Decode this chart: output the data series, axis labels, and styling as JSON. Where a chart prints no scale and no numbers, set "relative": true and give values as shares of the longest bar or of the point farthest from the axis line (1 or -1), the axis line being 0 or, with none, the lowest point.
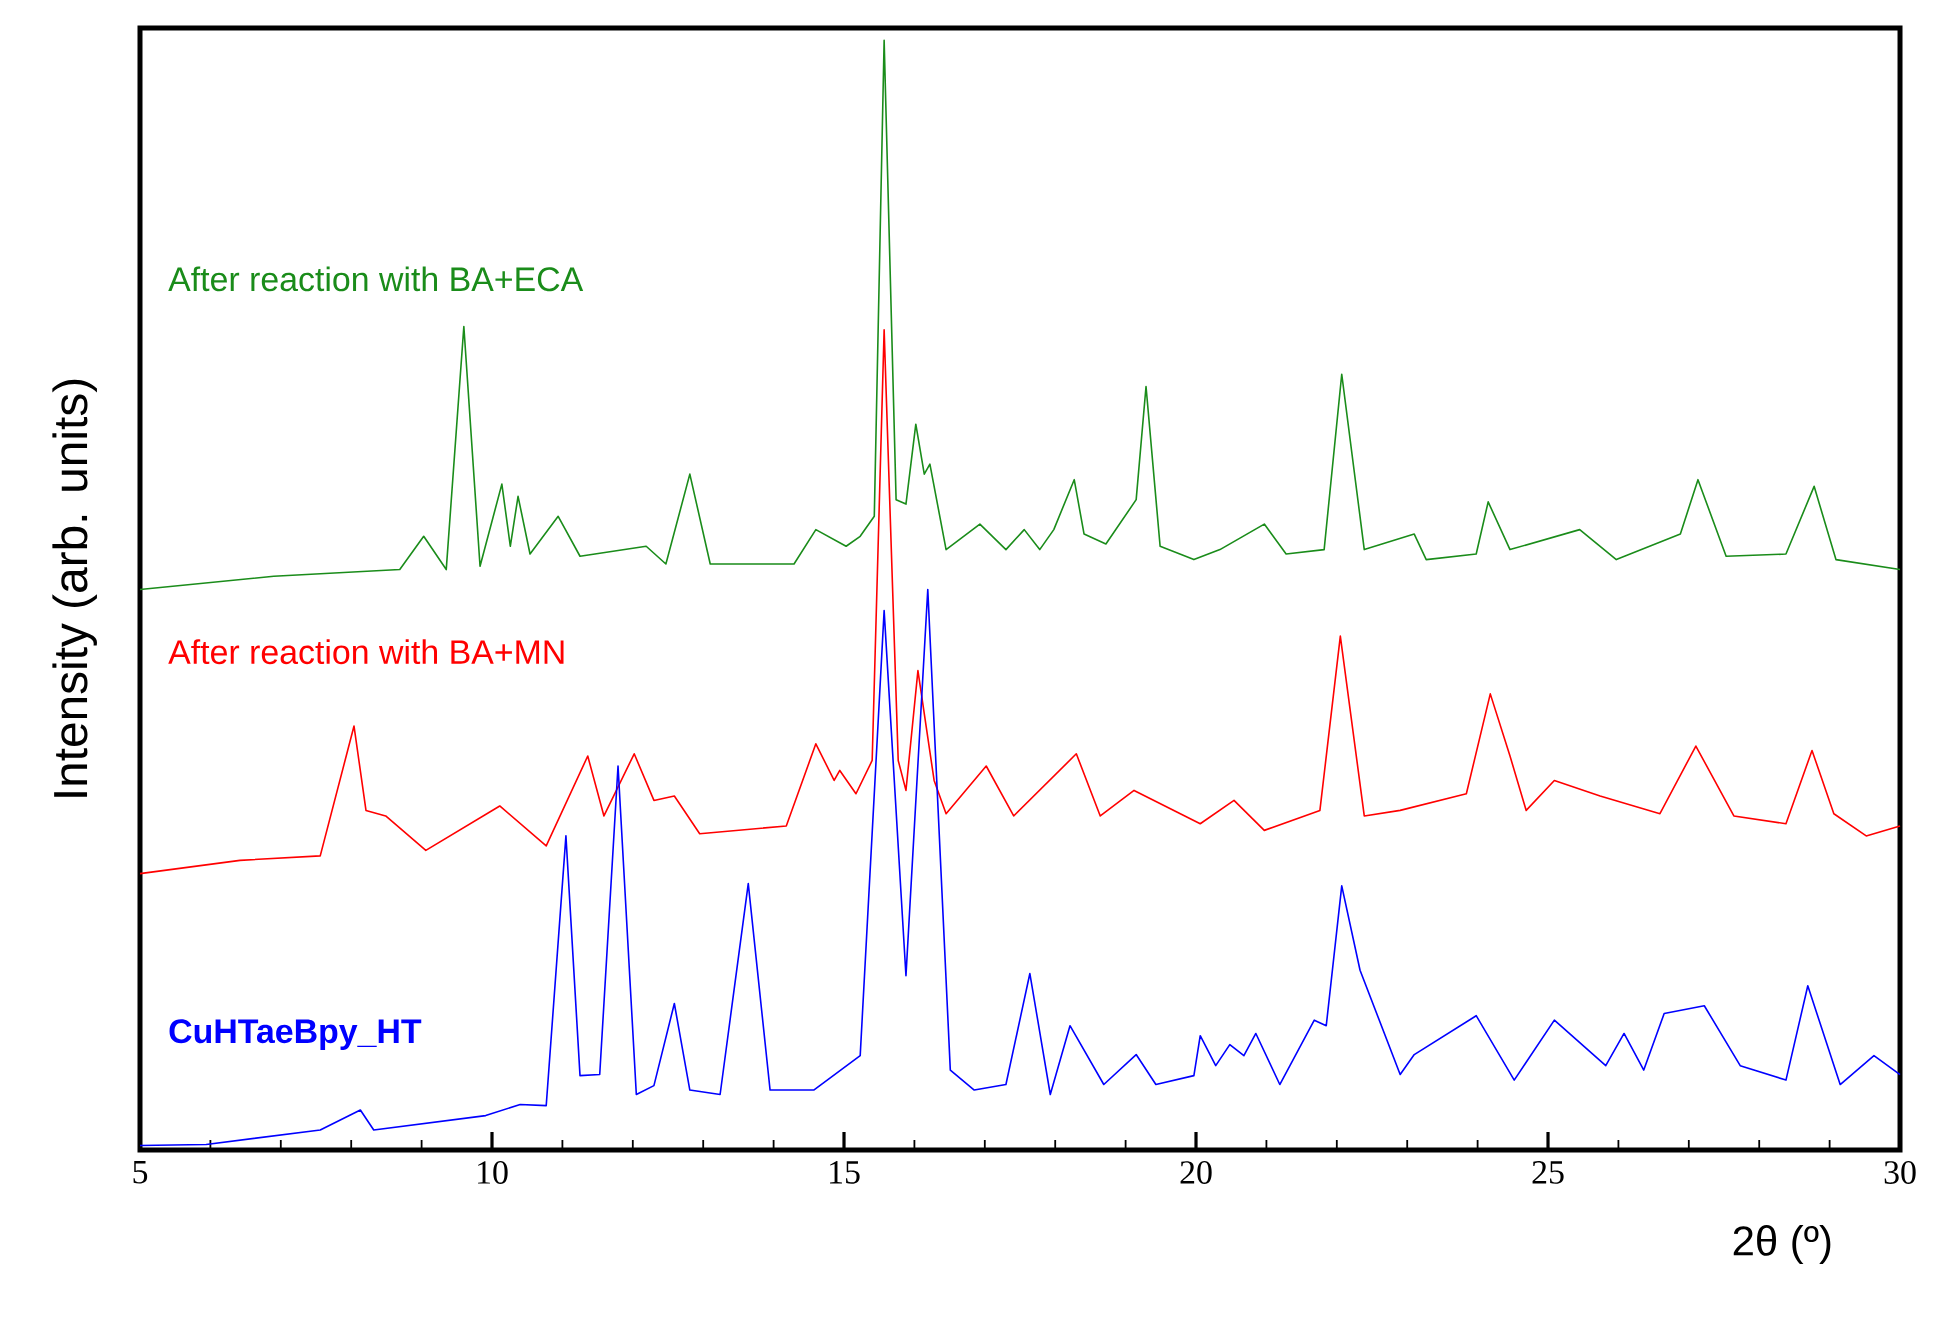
{
  "chart_data": {
    "type": "line",
    "relative": true,
    "xlabel": "2θ (º)",
    "ylabel": "Intensity (arb. units)",
    "xlim": [
      5,
      30
    ],
    "xticks": [
      5,
      10,
      15,
      20,
      25,
      30
    ],
    "legend": false,
    "grid": false,
    "marker": "none",
    "line_style": "solid",
    "series": [
      {
        "name": "After reaction with BA+ECA",
        "color": "#1a8c1a",
        "x": [
          5.0,
          6.9,
          8.69,
          9.03,
          9.35,
          9.6,
          9.83,
          10.14,
          10.26,
          10.37,
          10.54,
          10.94,
          11.25,
          12.19,
          12.47,
          12.81,
          13.1,
          14.29,
          14.6,
          15.03,
          15.23,
          15.43,
          15.57,
          15.74,
          15.88,
          16.02,
          16.14,
          16.22,
          16.45,
          16.93,
          17.3,
          17.56,
          17.78,
          17.98,
          18.27,
          18.41,
          18.72,
          19.15,
          19.29,
          19.49,
          19.97,
          20.34,
          20.97,
          21.28,
          21.82,
          22.07,
          22.39,
          23.1,
          23.27,
          23.98,
          24.15,
          24.46,
          25.45,
          25.97,
          26.88,
          27.13,
          27.53,
          28.38,
          28.78,
          29.09,
          30.0
        ],
        "values": [
          0.505,
          0.517,
          0.523,
          0.553,
          0.523,
          0.742,
          0.526,
          0.6,
          0.544,
          0.589,
          0.537,
          0.571,
          0.535,
          0.544,
          0.528,
          0.609,
          0.528,
          0.528,
          0.559,
          0.544,
          0.553,
          0.571,
          1.0,
          0.586,
          0.582,
          0.654,
          0.609,
          0.618,
          0.541,
          0.564,
          0.541,
          0.559,
          0.541,
          0.559,
          0.604,
          0.555,
          0.546,
          0.586,
          0.688,
          0.544,
          0.532,
          0.541,
          0.564,
          0.537,
          0.541,
          0.699,
          0.541,
          0.555,
          0.532,
          0.537,
          0.584,
          0.541,
          0.559,
          0.532,
          0.555,
          0.604,
          0.535,
          0.537,
          0.598,
          0.532,
          0.523
        ]
      },
      {
        "name": "After reaction with BA+MN",
        "color": "#ff0000",
        "x": [
          5.0,
          6.42,
          7.56,
          8.04,
          8.21,
          8.49,
          9.06,
          10.11,
          10.77,
          11.36,
          11.59,
          12.02,
          12.3,
          12.59,
          12.95,
          14.18,
          14.6,
          14.86,
          14.94,
          15.17,
          15.4,
          15.57,
          15.77,
          15.88,
          16.05,
          16.28,
          16.45,
          17.02,
          17.41,
          18.3,
          18.64,
          19.12,
          20.06,
          20.54,
          20.97,
          21.76,
          22.05,
          22.39,
          22.9,
          23.84,
          24.18,
          24.46,
          24.69,
          25.09,
          25.74,
          26.59,
          27.1,
          27.64,
          28.38,
          28.75,
          29.06,
          29.52,
          30.0
        ],
        "values": [
          0.249,
          0.261,
          0.265,
          0.382,
          0.306,
          0.301,
          0.27,
          0.31,
          0.274,
          0.355,
          0.301,
          0.357,
          0.315,
          0.319,
          0.285,
          0.292,
          0.366,
          0.333,
          0.342,
          0.321,
          0.351,
          0.739,
          0.351,
          0.324,
          0.432,
          0.333,
          0.303,
          0.346,
          0.301,
          0.357,
          0.301,
          0.324,
          0.294,
          0.315,
          0.288,
          0.306,
          0.463,
          0.301,
          0.306,
          0.321,
          0.411,
          0.355,
          0.306,
          0.333,
          0.319,
          0.303,
          0.364,
          0.301,
          0.294,
          0.36,
          0.303,
          0.283,
          0.292
        ]
      },
      {
        "name": "**CuHTaeBpy_HT**",
        "color": "#0000ff",
        "x": [
          5.0,
          5.94,
          7.56,
          8.13,
          8.32,
          9.91,
          10.4,
          10.77,
          11.05,
          11.25,
          11.53,
          11.79,
          12.05,
          12.3,
          12.59,
          12.81,
          13.24,
          13.64,
          13.95,
          14.57,
          15.23,
          15.57,
          15.88,
          16.19,
          16.51,
          16.85,
          17.3,
          17.64,
          17.93,
          18.21,
          18.69,
          19.15,
          19.43,
          19.97,
          20.06,
          20.28,
          20.48,
          20.68,
          20.85,
          21.19,
          21.68,
          21.85,
          22.07,
          22.33,
          22.9,
          23.1,
          23.98,
          24.52,
          25.09,
          25.82,
          26.08,
          26.36,
          26.65,
          27.22,
          27.73,
          28.38,
          28.69,
          29.15,
          29.63,
          30.0
        ],
        "values": [
          0.004,
          0.005,
          0.018,
          0.036,
          0.018,
          0.031,
          0.041,
          0.04,
          0.283,
          0.067,
          0.068,
          0.346,
          0.05,
          0.058,
          0.132,
          0.054,
          0.05,
          0.24,
          0.054,
          0.054,
          0.085,
          0.486,
          0.157,
          0.505,
          0.072,
          0.054,
          0.059,
          0.159,
          0.05,
          0.112,
          0.059,
          0.086,
          0.059,
          0.067,
          0.103,
          0.076,
          0.095,
          0.085,
          0.105,
          0.059,
          0.117,
          0.112,
          0.238,
          0.162,
          0.068,
          0.086,
          0.121,
          0.063,
          0.117,
          0.076,
          0.105,
          0.072,
          0.123,
          0.13,
          0.076,
          0.063,
          0.148,
          0.059,
          0.085,
          0.068
        ]
      }
    ]
  }
}
